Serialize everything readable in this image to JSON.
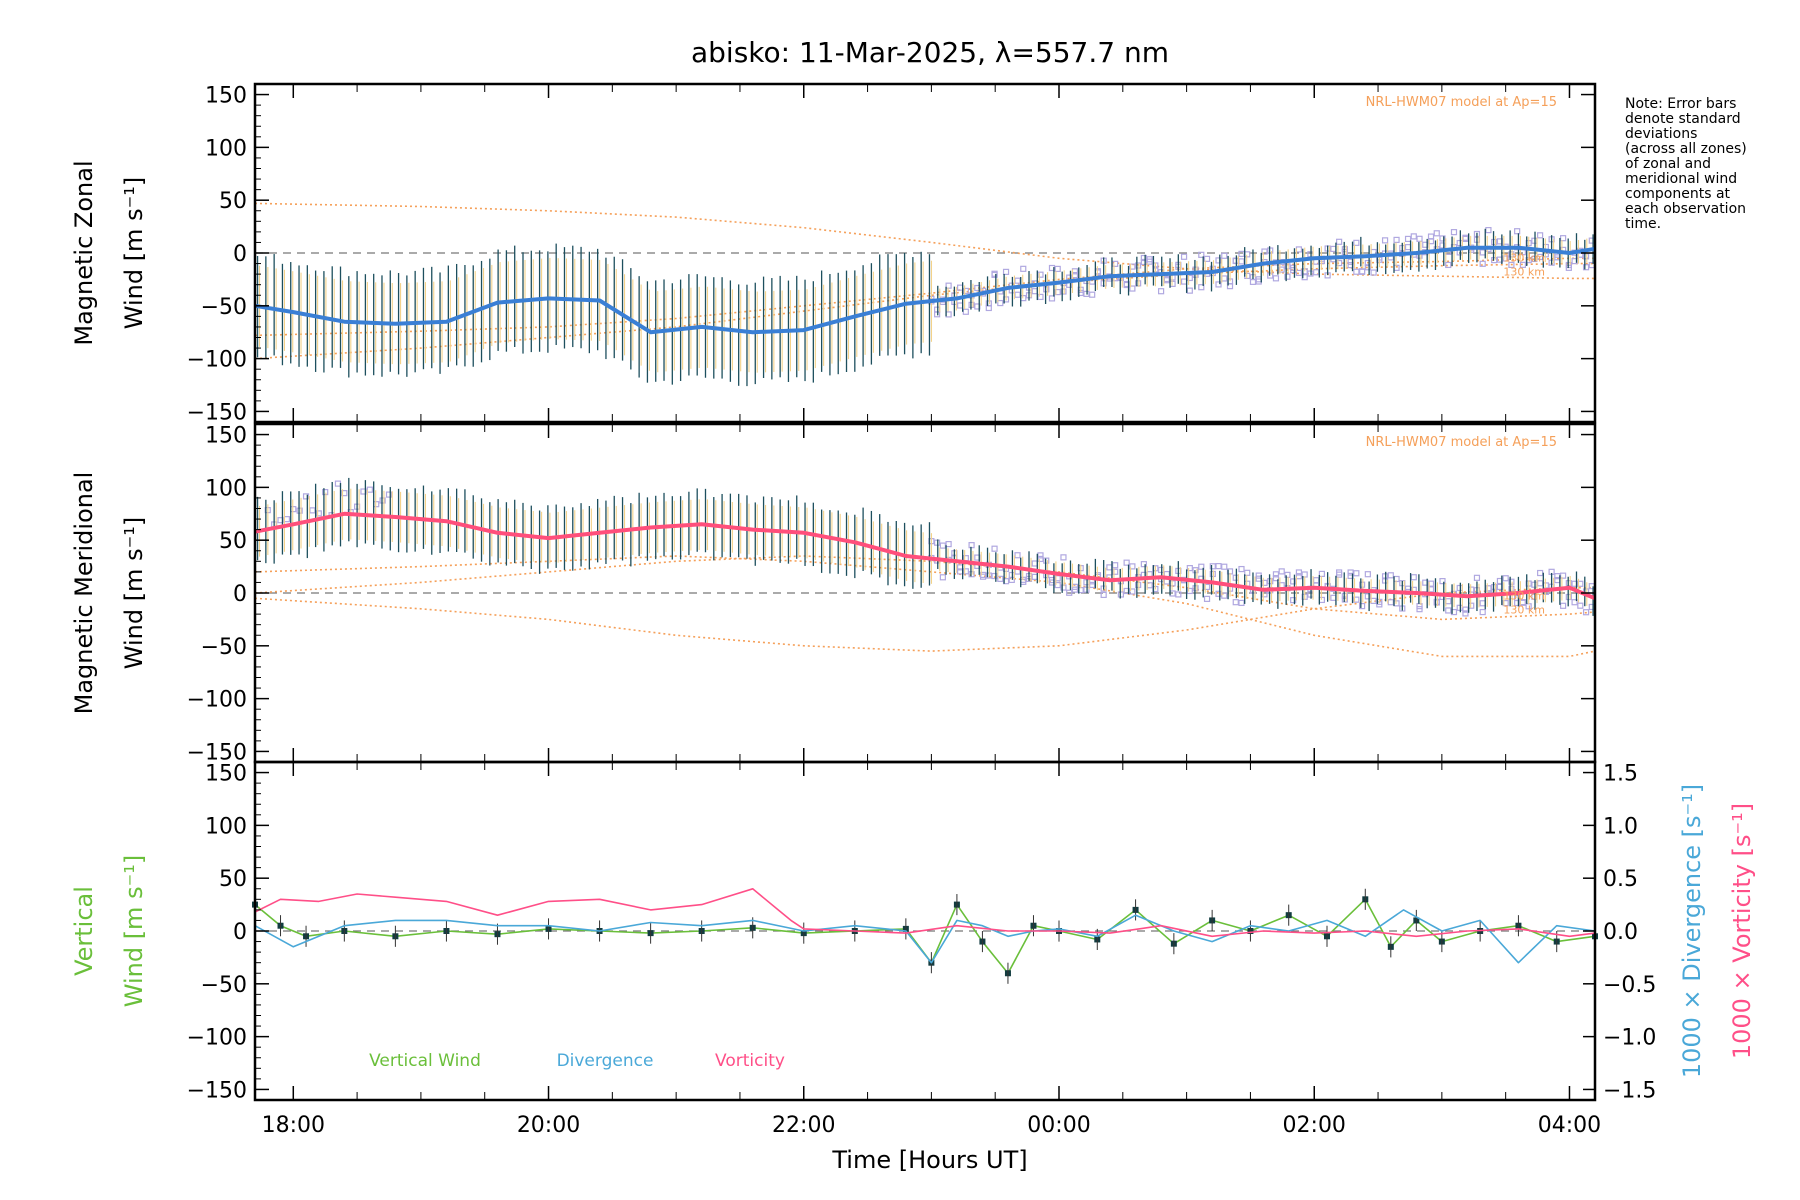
{
  "chart_data": {
    "type": "line",
    "title": "abisko: 11-Mar-2025, λ=557.7 nm",
    "xlabel": "Time [Hours UT]",
    "xlim": [
      17.7,
      28.2
    ],
    "xticks": [
      {
        "v": 18,
        "label": "18:00"
      },
      {
        "v": 20,
        "label": "20:00"
      },
      {
        "v": 22,
        "label": "22:00"
      },
      {
        "v": 24,
        "label": "00:00"
      },
      {
        "v": 26,
        "label": "02:00"
      },
      {
        "v": 28,
        "label": "04:00"
      }
    ],
    "ylim": [
      -160,
      160
    ],
    "yticks": [
      150,
      100,
      50,
      0,
      -50,
      -100,
      -150
    ],
    "note": [
      "Note: Error bars",
      "denote standard",
      "deviations",
      "(across all zones)",
      "of zonal and",
      "meridional wind",
      "components at",
      "each observation",
      "time."
    ],
    "colors": {
      "zonal": "#3a7fd5",
      "meridional": "#ff4f7b",
      "vertical": "#6abf3a",
      "divergence": "#4aa8d8",
      "vorticity": "#ff4f88",
      "model": "#f5a05a",
      "scatter": "#b0a8e0"
    },
    "panels": [
      {
        "name": "zonal",
        "ylabel": [
          "Magnetic Zonal",
          "Wind [m s⁻¹]"
        ],
        "model_label": "NRL-HWM07 model at Ap=15",
        "altitude_labels": [
          "130 km",
          "130 km"
        ],
        "series": [
          {
            "name": "zonal",
            "x": [
              17.7,
              18.0,
              18.4,
              18.8,
              19.2,
              19.6,
              20.0,
              20.4,
              20.8,
              21.2,
              21.6,
              22.0,
              22.4,
              22.8,
              23.2,
              23.6,
              24.0,
              24.4,
              24.8,
              25.2,
              25.6,
              26.0,
              26.4,
              26.8,
              27.2,
              27.6,
              28.0,
              28.2
            ],
            "y": [
              -50,
              -56,
              -65,
              -67,
              -65,
              -47,
              -43,
              -45,
              -75,
              -70,
              -75,
              -73,
              -60,
              -48,
              -43,
              -33,
              -28,
              -22,
              -20,
              -18,
              -10,
              -5,
              -3,
              0,
              5,
              5,
              0,
              4
            ]
          }
        ],
        "model_curves": [
          {
            "x": [
              17.7,
              19,
              20,
              21,
              22,
              23,
              24,
              25,
              26,
              27,
              28,
              28.2
            ],
            "y": [
              47,
              44,
              40,
              34,
              24,
              10,
              -5,
              -15,
              -20,
              -22,
              -24,
              -24
            ]
          },
          {
            "x": [
              17.7,
              19,
              20,
              21,
              22,
              23,
              24,
              25,
              26,
              27,
              28,
              28.2
            ],
            "y": [
              -100,
              -90,
              -80,
              -70,
              -55,
              -40,
              -28,
              -20,
              -15,
              -12,
              -10,
              -10
            ]
          },
          {
            "x": [
              17.7,
              19,
              20,
              21,
              22,
              23,
              24,
              25,
              26,
              27,
              28,
              28.2
            ],
            "y": [
              -78,
              -74,
              -70,
              -62,
              -50,
              -38,
              -25,
              -15,
              -10,
              -8,
              -5,
              -5
            ]
          }
        ]
      },
      {
        "name": "meridional",
        "ylabel": [
          "Magnetic Meridional",
          "Wind [m s⁻¹]"
        ],
        "model_label": "NRL-HWM07 model at Ap=15",
        "altitude_labels": [
          "130 km",
          "130 km"
        ],
        "series": [
          {
            "name": "meridional",
            "x": [
              17.7,
              18.0,
              18.4,
              18.8,
              19.2,
              19.6,
              20.0,
              20.4,
              20.8,
              21.2,
              21.6,
              22.0,
              22.4,
              22.8,
              23.2,
              23.6,
              24.0,
              24.4,
              24.8,
              25.2,
              25.6,
              26.0,
              26.4,
              26.8,
              27.2,
              27.6,
              28.0,
              28.2
            ],
            "y": [
              58,
              65,
              75,
              72,
              68,
              57,
              52,
              57,
              62,
              65,
              60,
              57,
              48,
              35,
              30,
              25,
              18,
              12,
              15,
              10,
              3,
              5,
              2,
              0,
              -3,
              0,
              5,
              -5
            ]
          }
        ],
        "model_curves": [
          {
            "x": [
              17.7,
              19,
              20,
              21,
              22,
              23,
              24,
              25,
              26,
              27,
              28,
              28.2
            ],
            "y": [
              -5,
              -15,
              -25,
              -40,
              -50,
              -55,
              -50,
              -35,
              -15,
              0,
              5,
              5
            ]
          },
          {
            "x": [
              17.7,
              19,
              20,
              21,
              22,
              23,
              24,
              25,
              26,
              27,
              28,
              28.2
            ],
            "y": [
              20,
              25,
              30,
              35,
              30,
              20,
              10,
              -10,
              -40,
              -60,
              -60,
              -55
            ]
          },
          {
            "x": [
              17.7,
              19,
              20,
              21,
              22,
              23,
              24,
              25,
              26,
              27,
              28,
              28.2
            ],
            "y": [
              0,
              10,
              20,
              30,
              35,
              30,
              20,
              5,
              -15,
              -25,
              -20,
              -18
            ]
          }
        ]
      },
      {
        "name": "vertical",
        "ylabel": [
          "Vertical",
          "Wind [m s⁻¹]"
        ],
        "y2label": [
          "1000 × Divergence [s⁻¹]",
          "1000 × Vorticity [s⁻¹]"
        ],
        "y2lim": [
          -1.6,
          1.6
        ],
        "y2ticks": [
          1.5,
          1.0,
          0.5,
          0.0,
          -0.5,
          -1.0,
          -1.5
        ],
        "legend": [
          "Vertical Wind",
          "Divergence",
          "Vorticity"
        ],
        "series": [
          {
            "name": "Vertical Wind",
            "x": [
              17.7,
              17.9,
              18.1,
              18.4,
              18.8,
              19.2,
              19.6,
              20.0,
              20.4,
              20.8,
              21.2,
              21.6,
              22.0,
              22.4,
              22.8,
              23.0,
              23.2,
              23.4,
              23.6,
              23.8,
              24.0,
              24.3,
              24.6,
              24.9,
              25.2,
              25.5,
              25.8,
              26.1,
              26.4,
              26.6,
              26.8,
              27.0,
              27.3,
              27.6,
              27.9,
              28.2
            ],
            "y": [
              25,
              5,
              -5,
              0,
              -5,
              0,
              -3,
              2,
              0,
              -2,
              0,
              3,
              -2,
              0,
              2,
              -30,
              25,
              -10,
              -40,
              5,
              0,
              -8,
              20,
              -12,
              10,
              0,
              15,
              -5,
              30,
              -15,
              10,
              -10,
              0,
              5,
              -10,
              -5
            ]
          },
          {
            "name": "Divergence",
            "axis": "y2",
            "x": [
              17.7,
              18.0,
              18.4,
              18.8,
              19.2,
              19.6,
              20.0,
              20.4,
              20.8,
              21.2,
              21.6,
              22.0,
              22.4,
              22.8,
              23.0,
              23.2,
              23.4,
              23.6,
              23.8,
              24.0,
              24.3,
              24.6,
              24.9,
              25.2,
              25.5,
              25.8,
              26.1,
              26.4,
              26.7,
              27.0,
              27.3,
              27.6,
              27.9,
              28.2
            ],
            "y": [
              0.05,
              -0.15,
              0.05,
              0.1,
              0.1,
              0.05,
              0.05,
              0.0,
              0.08,
              0.05,
              0.1,
              0.0,
              0.05,
              0.0,
              -0.3,
              0.1,
              0.05,
              -0.05,
              0.0,
              0.02,
              -0.05,
              0.15,
              0.0,
              -0.1,
              0.05,
              0.0,
              0.1,
              -0.05,
              0.2,
              0.0,
              0.1,
              -0.3,
              0.05,
              0.0
            ]
          },
          {
            "name": "Vorticity",
            "axis": "y2",
            "x": [
              17.7,
              17.9,
              18.2,
              18.5,
              18.8,
              19.2,
              19.6,
              20.0,
              20.4,
              20.8,
              21.2,
              21.6,
              21.8,
              21.9,
              22.0,
              22.4,
              22.8,
              23.2,
              23.6,
              24.0,
              24.4,
              24.8,
              25.2,
              25.6,
              26.0,
              26.4,
              26.8,
              27.2,
              27.6,
              28.0,
              28.2
            ],
            "y": [
              0.18,
              0.3,
              0.28,
              0.35,
              0.32,
              0.28,
              0.15,
              0.28,
              0.3,
              0.2,
              0.25,
              0.4,
              0.2,
              0.1,
              0.02,
              0.0,
              -0.02,
              0.05,
              0.0,
              0.0,
              -0.02,
              0.05,
              -0.05,
              0.0,
              -0.02,
              0.0,
              -0.05,
              0.0,
              0.02,
              -0.05,
              -0.02
            ]
          }
        ]
      }
    ]
  }
}
